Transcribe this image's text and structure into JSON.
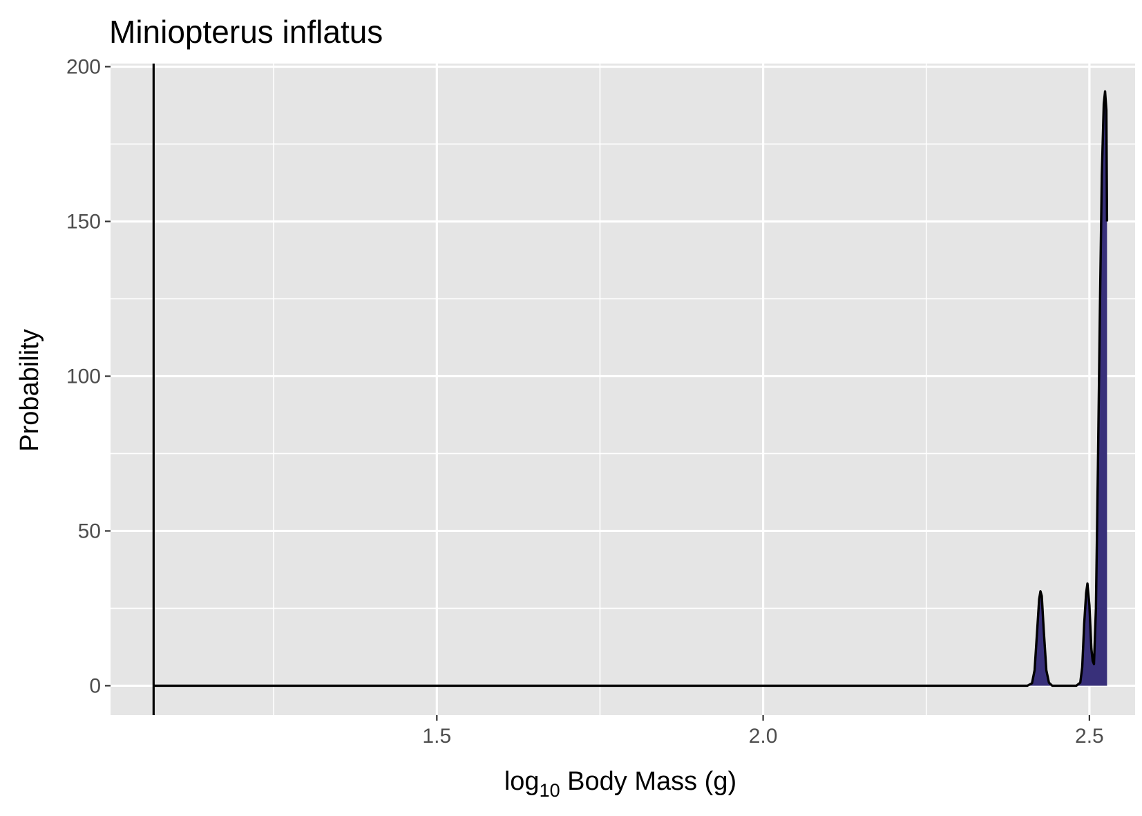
{
  "chart_data": {
    "type": "area",
    "title": "Miniopterus inflatus",
    "xlabel": {
      "main": "log",
      "subscript": "10",
      "rest": " Body Mass (g)"
    },
    "ylabel": "Probability",
    "xlim": [
      1.0,
      2.57
    ],
    "ylim": [
      -9.5,
      201
    ],
    "x_ticks": [
      {
        "value": 1.5,
        "label": "1.5"
      },
      {
        "value": 2.0,
        "label": "2.0"
      },
      {
        "value": 2.5,
        "label": "2.5"
      }
    ],
    "x_minor_ticks": [
      1.25,
      1.75,
      2.25
    ],
    "y_ticks": [
      {
        "value": 0,
        "label": "0"
      },
      {
        "value": 50,
        "label": "50"
      },
      {
        "value": 100,
        "label": "100"
      },
      {
        "value": 150,
        "label": "150"
      },
      {
        "value": 200,
        "label": "200"
      }
    ],
    "y_minor_ticks": [
      25,
      75,
      125,
      175
    ],
    "grid": true,
    "vline_x": 1.066,
    "fill_color": "#38307a",
    "panel_color": "#e5e5e5",
    "line_color": "#000000",
    "series": [
      {
        "values": [
          [
            1.066,
            0
          ],
          [
            1.5,
            0
          ],
          [
            2.0,
            0
          ],
          [
            2.3,
            0
          ],
          [
            2.405,
            0
          ],
          [
            2.412,
            0.8
          ],
          [
            2.416,
            5
          ],
          [
            2.42,
            18
          ],
          [
            2.423,
            28
          ],
          [
            2.425,
            30.5
          ],
          [
            2.427,
            29
          ],
          [
            2.43,
            18
          ],
          [
            2.434,
            5
          ],
          [
            2.438,
            1
          ],
          [
            2.443,
            0
          ],
          [
            2.48,
            0
          ],
          [
            2.486,
            1
          ],
          [
            2.489,
            6
          ],
          [
            2.492,
            20
          ],
          [
            2.495,
            30
          ],
          [
            2.497,
            33
          ],
          [
            2.5,
            26
          ],
          [
            2.503,
            12
          ],
          [
            2.505,
            8
          ],
          [
            2.507,
            7
          ],
          [
            2.51,
            25
          ],
          [
            2.513,
            70
          ],
          [
            2.516,
            120
          ],
          [
            2.519,
            165
          ],
          [
            2.522,
            188
          ],
          [
            2.524,
            192
          ],
          [
            2.526,
            186
          ],
          [
            2.527,
            150
          ]
        ]
      }
    ],
    "fill_from": 2.405,
    "fill_to": 2.527
  }
}
